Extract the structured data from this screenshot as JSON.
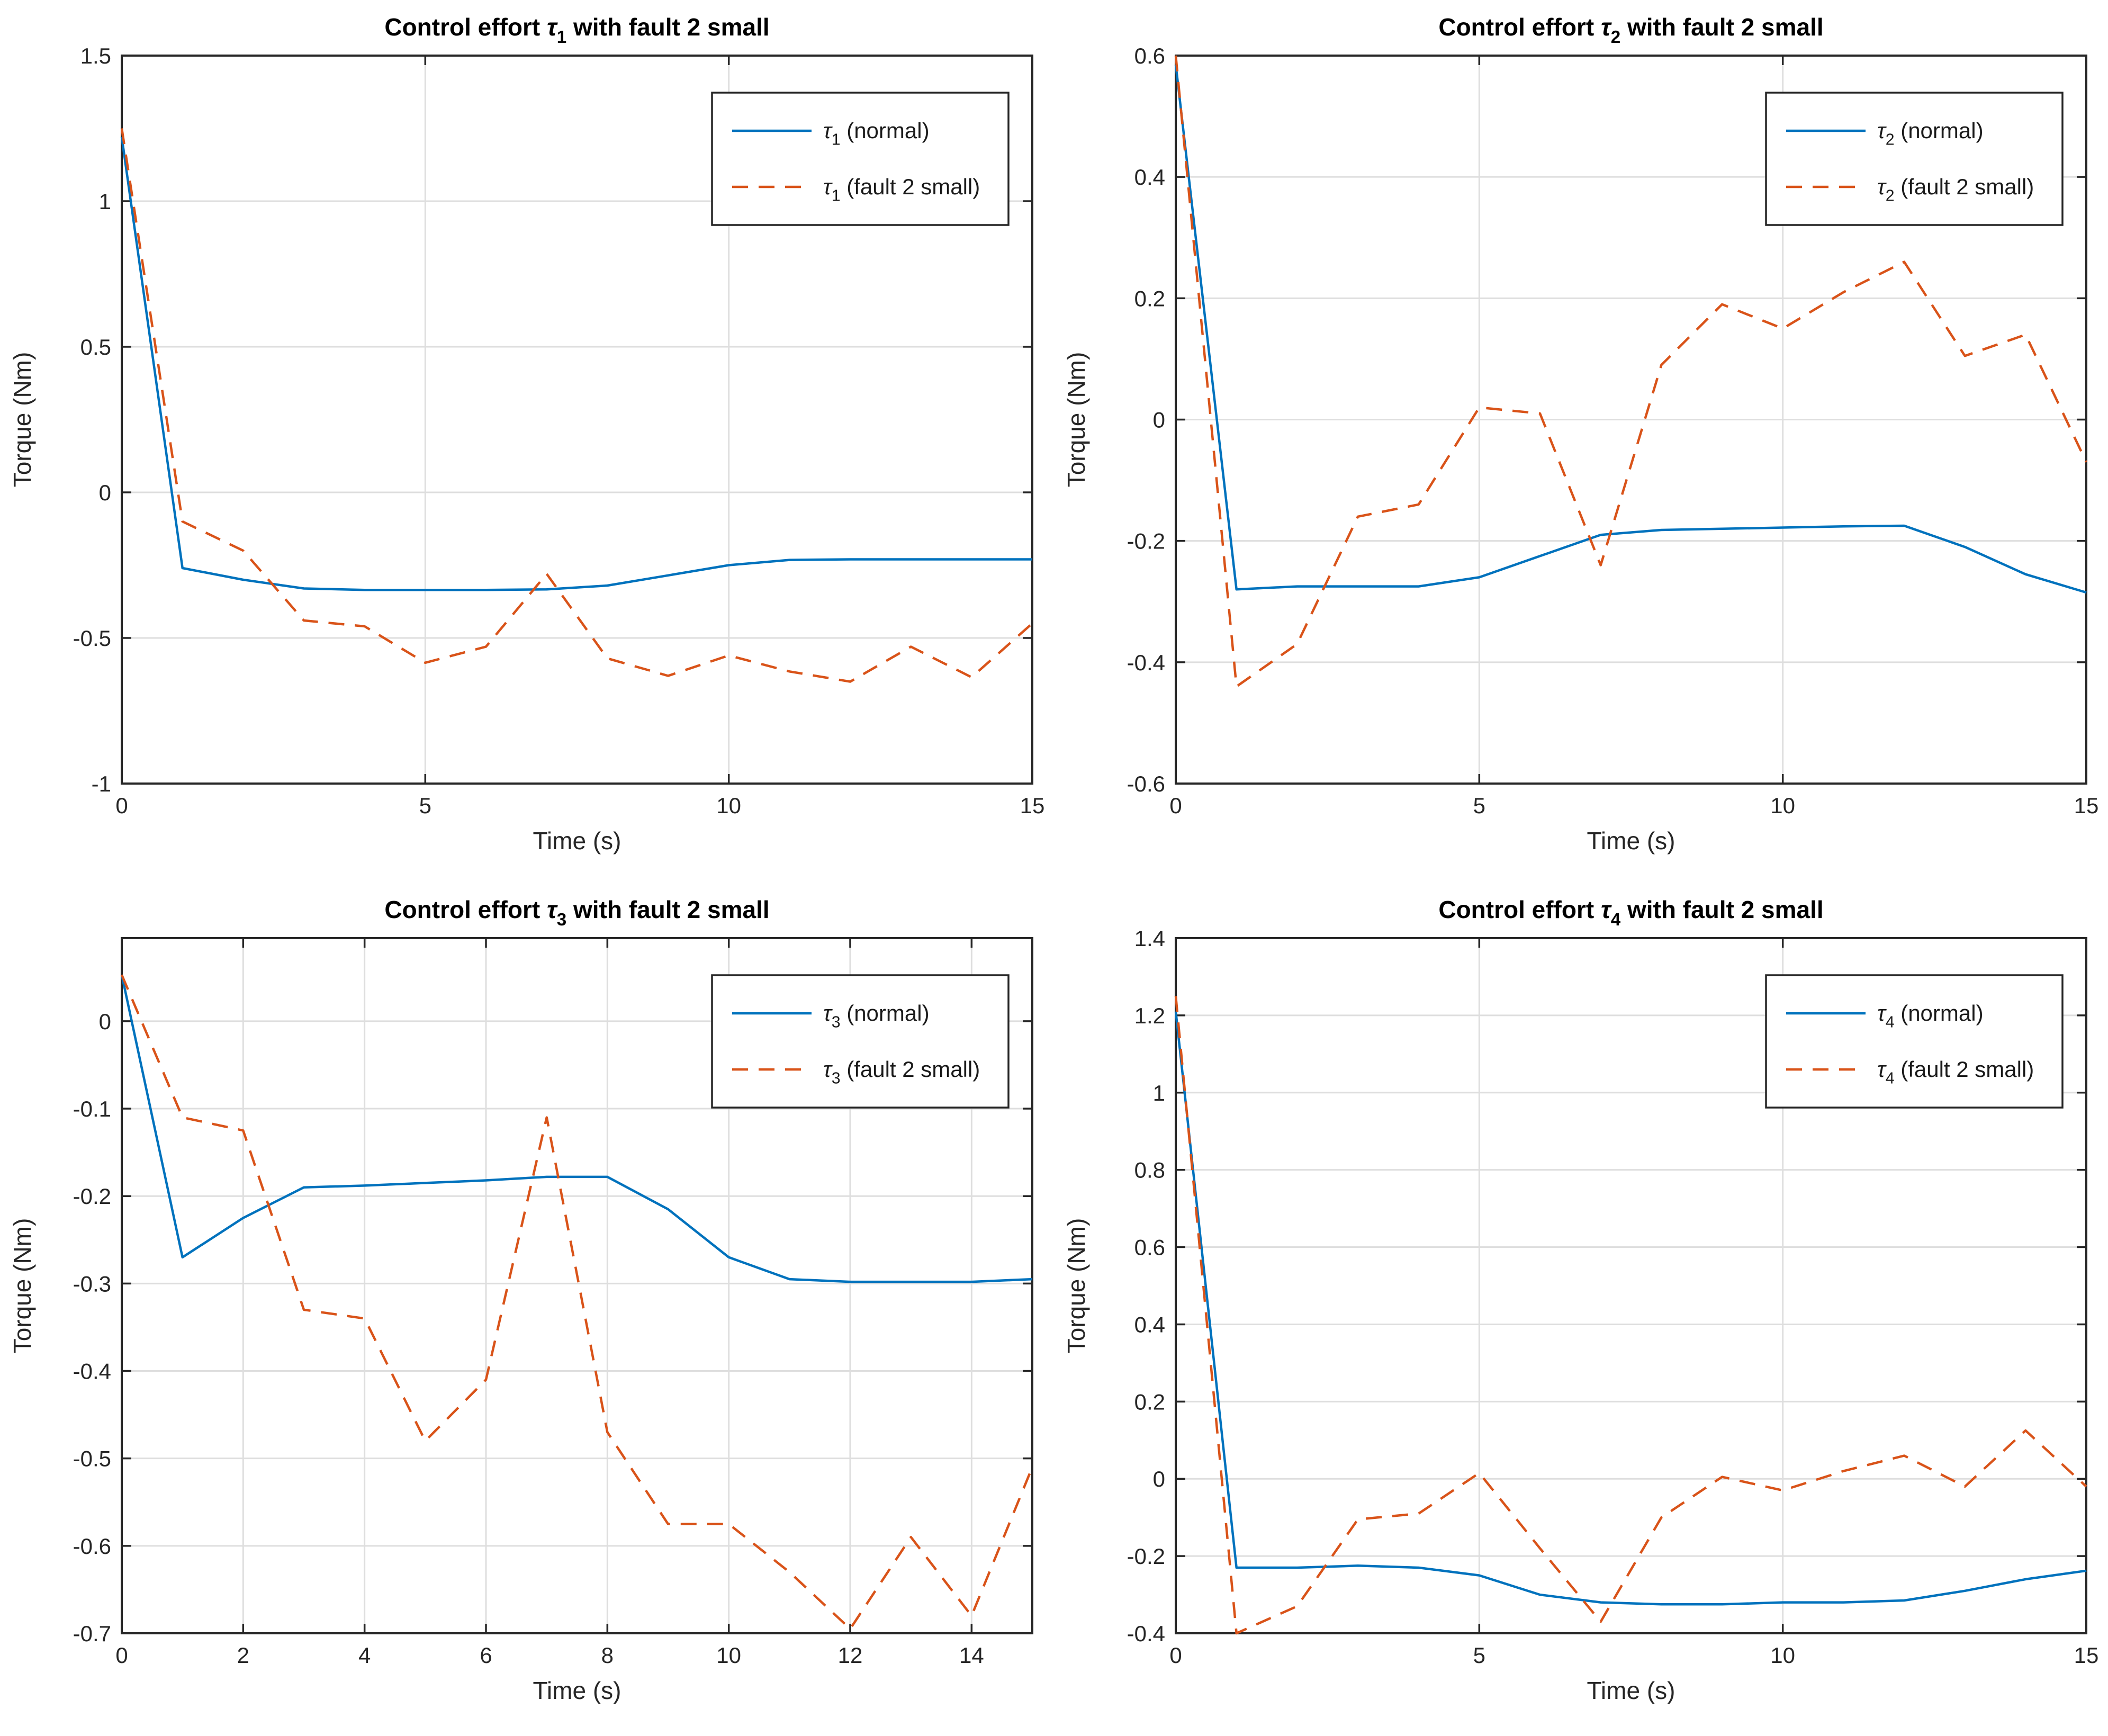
{
  "figure": {
    "background": "#ffffff"
  },
  "palette": {
    "normal_line": "#0072BD",
    "fault_line": "#D95319",
    "grid": "#dedede",
    "axis": "#262626",
    "title_color": "#000000",
    "legend_border": "#262626",
    "legend_fill": "#ffffff"
  },
  "chart_data": [
    {
      "type": "line",
      "title": {
        "prefix": "Control effort ",
        "symbol": "τ",
        "subscript": "1",
        "suffix": " with fault 2 small"
      },
      "xlabel": "Time (s)",
      "ylabel": "Torque (Nm)",
      "xlim": [
        0,
        15
      ],
      "ylim": [
        -1,
        1.5
      ],
      "xticks": [
        0,
        5,
        10,
        15
      ],
      "xtick_labels": [
        "0",
        "5",
        "10",
        "15"
      ],
      "yticks": [
        -1,
        -0.5,
        0,
        0.5,
        1,
        1.5
      ],
      "ytick_labels": [
        "-1",
        "-0.5",
        "0",
        "0.5",
        "1",
        "1.5"
      ],
      "grid": true,
      "x": [
        0,
        1,
        2,
        3,
        4,
        5,
        6,
        7,
        8,
        9,
        10,
        11,
        12,
        13,
        14,
        15
      ],
      "series": [
        {
          "name": "normal",
          "color": "#0072BD",
          "dash": "",
          "values": [
            1.22,
            -0.26,
            -0.3,
            -0.33,
            -0.335,
            -0.335,
            -0.335,
            -0.333,
            -0.32,
            -0.285,
            -0.25,
            -0.232,
            -0.23,
            -0.23,
            -0.23,
            -0.23
          ]
        },
        {
          "name": "fault 2 small",
          "color": "#D95319",
          "dash": "30 20",
          "values": [
            1.25,
            -0.1,
            -0.2,
            -0.44,
            -0.46,
            -0.585,
            -0.53,
            -0.28,
            -0.57,
            -0.63,
            -0.56,
            -0.615,
            -0.65,
            -0.53,
            -0.635,
            -0.45
          ]
        }
      ],
      "legend": {
        "position": "top-right",
        "entries": [
          {
            "symbol": "τ",
            "subscript": "1",
            "rest": " (normal)",
            "color": "#0072BD",
            "dash": ""
          },
          {
            "symbol": "τ",
            "subscript": "1",
            "rest": " (fault 2 small)",
            "color": "#D95319",
            "dash": "30 20"
          }
        ]
      }
    },
    {
      "type": "line",
      "title": {
        "prefix": "Control effort ",
        "symbol": "τ",
        "subscript": "2",
        "suffix": " with fault 2 small"
      },
      "xlabel": "Time (s)",
      "ylabel": "Torque (Nm)",
      "xlim": [
        0,
        15
      ],
      "ylim": [
        -0.6,
        0.6
      ],
      "xticks": [
        0,
        5,
        10,
        15
      ],
      "xtick_labels": [
        "0",
        "5",
        "10",
        "15"
      ],
      "yticks": [
        -0.6,
        -0.4,
        -0.2,
        0,
        0.2,
        0.4,
        0.6
      ],
      "ytick_labels": [
        "-0.6",
        "-0.4",
        "-0.2",
        "0",
        "0.2",
        "0.4",
        "0.6"
      ],
      "grid": true,
      "x": [
        0,
        1,
        2,
        3,
        4,
        5,
        6,
        7,
        8,
        9,
        10,
        11,
        12,
        13,
        14,
        15
      ],
      "series": [
        {
          "name": "normal",
          "color": "#0072BD",
          "dash": "",
          "values": [
            0.585,
            -0.28,
            -0.275,
            -0.275,
            -0.275,
            -0.26,
            -0.225,
            -0.19,
            -0.182,
            -0.18,
            -0.178,
            -0.176,
            -0.175,
            -0.21,
            -0.255,
            -0.285
          ]
        },
        {
          "name": "fault 2 small",
          "color": "#D95319",
          "dash": "30 20",
          "values": [
            0.6,
            -0.44,
            -0.37,
            -0.16,
            -0.14,
            0.02,
            0.01,
            -0.24,
            0.09,
            0.19,
            0.15,
            0.21,
            0.26,
            0.105,
            0.14,
            -0.07
          ]
        }
      ],
      "legend": {
        "position": "top-right",
        "entries": [
          {
            "symbol": "τ",
            "subscript": "2",
            "rest": " (normal)",
            "color": "#0072BD",
            "dash": ""
          },
          {
            "symbol": "τ",
            "subscript": "2",
            "rest": " (fault 2 small)",
            "color": "#D95319",
            "dash": "30 20"
          }
        ]
      }
    },
    {
      "type": "line",
      "title": {
        "prefix": "Control effort ",
        "symbol": "τ",
        "subscript": "3",
        "suffix": " with fault 2 small"
      },
      "xlabel": "Time (s)",
      "ylabel": "Torque (Nm)",
      "xlim": [
        0,
        15
      ],
      "ylim": [
        -0.7,
        0.095
      ],
      "xticks": [
        0,
        2,
        4,
        6,
        8,
        10,
        12,
        14
      ],
      "xtick_labels": [
        "0",
        "2",
        "4",
        "6",
        "8",
        "10",
        "12",
        "14"
      ],
      "yticks": [
        -0.7,
        -0.6,
        -0.5,
        -0.4,
        -0.3,
        -0.2,
        -0.1,
        0
      ],
      "ytick_labels": [
        "-0.7",
        "-0.6",
        "-0.5",
        "-0.4",
        "-0.3",
        "-0.2",
        "-0.1",
        "0"
      ],
      "grid": true,
      "x": [
        0,
        1,
        2,
        3,
        4,
        5,
        6,
        7,
        8,
        9,
        10,
        11,
        12,
        13,
        14,
        15
      ],
      "series": [
        {
          "name": "normal",
          "color": "#0072BD",
          "dash": "",
          "values": [
            0.053,
            -0.27,
            -0.225,
            -0.19,
            -0.188,
            -0.185,
            -0.182,
            -0.178,
            -0.178,
            -0.215,
            -0.27,
            -0.295,
            -0.298,
            -0.298,
            -0.298,
            -0.295
          ]
        },
        {
          "name": "fault 2 small",
          "color": "#D95319",
          "dash": "30 20",
          "values": [
            0.053,
            -0.11,
            -0.125,
            -0.33,
            -0.34,
            -0.48,
            -0.41,
            -0.11,
            -0.47,
            -0.575,
            -0.575,
            -0.63,
            -0.695,
            -0.59,
            -0.68,
            -0.51
          ]
        }
      ],
      "legend": {
        "position": "top-right",
        "entries": [
          {
            "symbol": "τ",
            "subscript": "3",
            "rest": " (normal)",
            "color": "#0072BD",
            "dash": ""
          },
          {
            "symbol": "τ",
            "subscript": "3",
            "rest": " (fault 2 small)",
            "color": "#D95319",
            "dash": "30 20"
          }
        ]
      }
    },
    {
      "type": "line",
      "title": {
        "prefix": "Control effort ",
        "symbol": "τ",
        "subscript": "4",
        "suffix": " with fault 2 small"
      },
      "xlabel": "Time (s)",
      "ylabel": "Torque (Nm)",
      "xlim": [
        0,
        15
      ],
      "ylim": [
        -0.4,
        1.4
      ],
      "xticks": [
        0,
        5,
        10,
        15
      ],
      "xtick_labels": [
        "0",
        "5",
        "10",
        "15"
      ],
      "yticks": [
        -0.4,
        -0.2,
        0,
        0.2,
        0.4,
        0.6,
        0.8,
        1,
        1.2,
        1.4
      ],
      "ytick_labels": [
        "-0.4",
        "-0.2",
        "0",
        "0.2",
        "0.4",
        "0.6",
        "0.8",
        "1",
        "1.2",
        "1.4"
      ],
      "grid": true,
      "x": [
        0,
        1,
        2,
        3,
        4,
        5,
        6,
        7,
        8,
        9,
        10,
        11,
        12,
        13,
        14,
        15
      ],
      "series": [
        {
          "name": "normal",
          "color": "#0072BD",
          "dash": "",
          "values": [
            1.21,
            -0.23,
            -0.23,
            -0.225,
            -0.23,
            -0.25,
            -0.3,
            -0.32,
            -0.325,
            -0.325,
            -0.32,
            -0.32,
            -0.315,
            -0.29,
            -0.26,
            -0.238
          ]
        },
        {
          "name": "fault 2 small",
          "color": "#D95319",
          "dash": "30 20",
          "values": [
            1.25,
            -0.4,
            -0.33,
            -0.105,
            -0.09,
            0.015,
            -0.18,
            -0.37,
            -0.1,
            0.005,
            -0.03,
            0.02,
            0.06,
            -0.02,
            0.125,
            -0.02
          ]
        }
      ],
      "legend": {
        "position": "top-right",
        "entries": [
          {
            "symbol": "τ",
            "subscript": "4",
            "rest": " (normal)",
            "color": "#0072BD",
            "dash": ""
          },
          {
            "symbol": "τ",
            "subscript": "4",
            "rest": " (fault 2 small)",
            "color": "#D95319",
            "dash": "30 20"
          }
        ]
      }
    }
  ]
}
